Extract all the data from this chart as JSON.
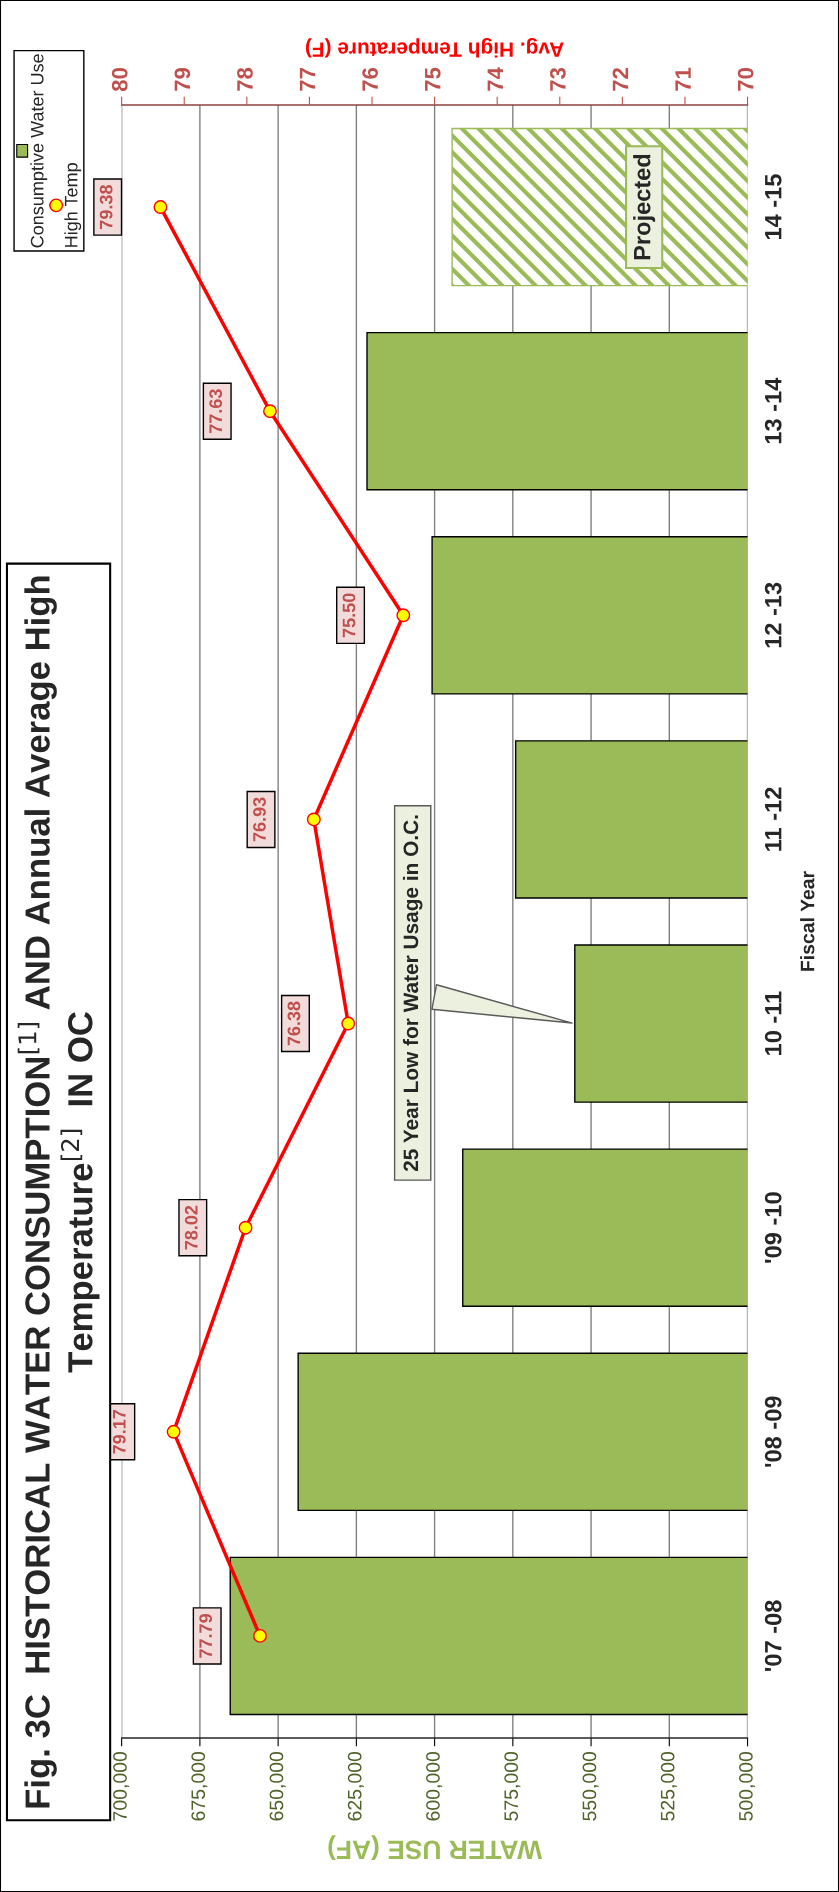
{
  "chart_data": {
    "type": "bar",
    "orientation": "horizontal",
    "title": "Fig. 3C  HISTORICAL WATER CONSUMPTION$^{[1]}$ AND Annual Average High Temperature$^{[2]}$  IN OC",
    "xlabel": "WATER USE (AF)",
    "x2label": "Avg. High Temperature (F)",
    "ylabel": "Fiscal Year",
    "categories": [
      "14 -15",
      "13 -14",
      "12 -13",
      "11 -12",
      "10 -11",
      "'09 -10",
      "'08 -09",
      "'07 -08"
    ],
    "series": [
      {
        "name": "Consumptive Water Use",
        "color": "#9bbb59",
        "values": [
          null,
          621600,
          600800,
          574100,
          555200,
          591000,
          643600,
          665300
        ]
      },
      {
        "color": "#9bbb59",
        "values": [
          594400,
          null,
          null,
          null,
          null,
          null,
          null,
          null
        ]
      },
      {
        "name": "High Temp",
        "type": "line",
        "axis": "x2",
        "color": "#ff0000",
        "values": [
          79.38,
          77.63,
          75.5,
          76.93,
          76.38,
          78.02,
          79.17,
          77.79
        ],
        "value_labels": [
          "79.38",
          "77.63",
          "75.50",
          "76.93",
          "76.38",
          "78.02",
          "79.17",
          "77.79"
        ]
      }
    ],
    "xlim": [
      700000,
      500000
    ],
    "xticks": [
      {
        "value": 700000,
        "label": "700,000"
      },
      {
        "value": 675000,
        "label": "675,000"
      },
      {
        "value": 650000,
        "label": "650,000"
      },
      {
        "value": 625000,
        "label": "625,000"
      },
      {
        "value": 600000,
        "label": "600,000"
      },
      {
        "value": 575000,
        "label": "575,000"
      },
      {
        "value": 550000,
        "label": "550,000"
      },
      {
        "value": 525000,
        "label": "525,000"
      },
      {
        "value": 500000,
        "label": "500,000"
      }
    ],
    "x2lim": [
      80,
      70
    ],
    "x2ticks": [
      80,
      79,
      78,
      77,
      76,
      75,
      74,
      73,
      72,
      71,
      70
    ],
    "grid": "x",
    "legend": "top left",
    "marker": "circle",
    "line_style": "solid",
    "annotations": [
      {
        "text": "25 Year Low for Water Usage in O.C.",
        "x": 555200,
        "y": "10 -11"
      },
      "Projected"
    ]
  }
}
